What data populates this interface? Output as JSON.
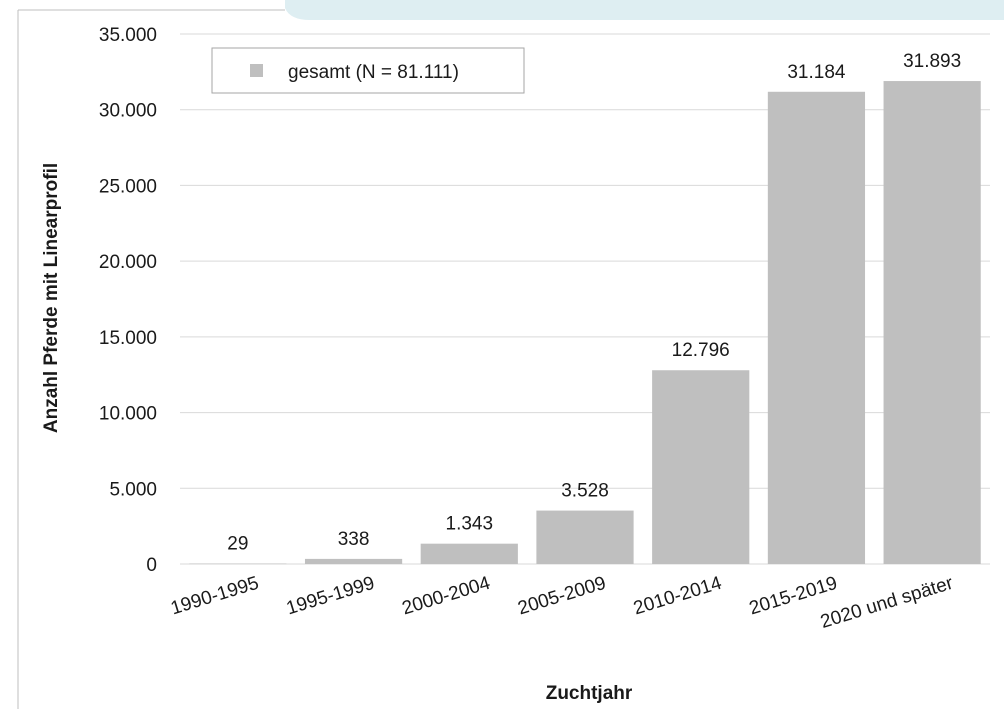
{
  "chart_data": {
    "type": "bar",
    "categories": [
      "1990-1995",
      "1995-1999",
      "2000-2004",
      "2005-2009",
      "2010-2014",
      "2015-2019",
      "2020 und später"
    ],
    "series": [
      {
        "name": "gesamt (N = 81.111)",
        "values": [
          29,
          338,
          1343,
          3528,
          12796,
          31184,
          31893
        ]
      }
    ],
    "value_labels": [
      "29",
      "338",
      "1.343",
      "3.528",
      "12.796",
      "31.184",
      "31.893"
    ],
    "ylim": [
      0,
      35000
    ],
    "yticks": [
      0,
      5000,
      10000,
      15000,
      20000,
      25000,
      30000,
      35000
    ],
    "ytick_labels": [
      "0",
      "5.000",
      "10.000",
      "15.000",
      "20.000",
      "25.000",
      "30.000",
      "35.000"
    ],
    "xlabel": "Zuchtjahr",
    "ylabel": "Anzahl Pferde mit Linearprofil",
    "grid": true,
    "legend_position": "top-left",
    "bar_color": "#bfbfbf",
    "grid_color": "#d9d9d9",
    "accent_color": "#deeef2"
  }
}
